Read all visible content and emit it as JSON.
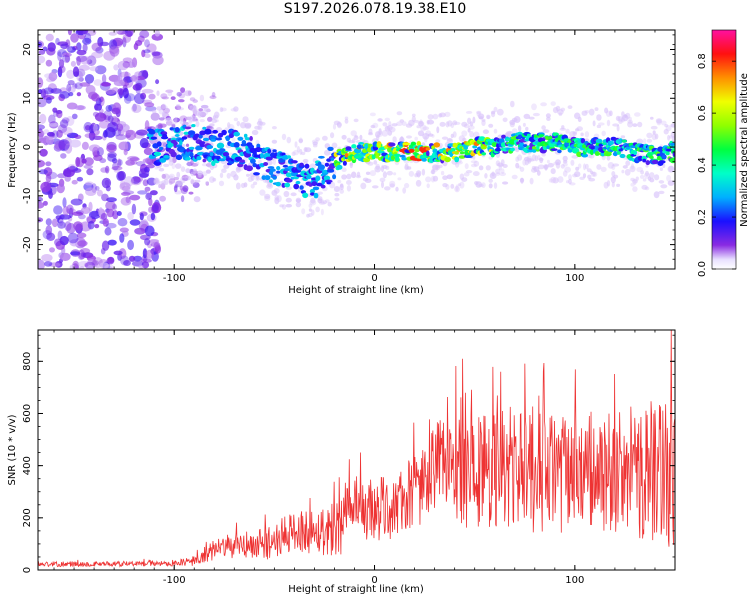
{
  "title": "S197.2026.078.19.38.E10",
  "chart_data": [
    {
      "type": "heatmap",
      "xlabel": "Height of straight line (km)",
      "ylabel": "Frequency (Hz)",
      "xlim": [
        -168,
        150
      ],
      "ylim": [
        -25,
        24
      ],
      "xticks": [
        -100,
        0,
        100
      ],
      "xtick_labels": [
        "-100",
        "0",
        "100"
      ],
      "yticks": [
        -20,
        -10,
        0,
        10,
        20
      ],
      "ytick_labels": [
        "-20",
        "-10",
        "0",
        "10",
        "20"
      ],
      "ridge": {
        "x": [
          -110,
          -100,
          -90,
          -80,
          -70,
          -60,
          -50,
          -40,
          -30,
          -20,
          -10,
          0,
          10,
          20,
          30,
          40,
          50,
          60,
          70,
          80,
          90,
          100,
          110,
          120,
          130,
          140,
          148
        ],
        "freq_hz": [
          0,
          1,
          1,
          0,
          0,
          -2,
          -4,
          -6,
          -7,
          -3,
          -1,
          -1,
          -1,
          -1,
          -1,
          -1,
          0,
          0,
          1,
          1,
          1,
          0,
          0,
          0,
          -1,
          -2,
          -1
        ]
      },
      "colorbar": {
        "label": "Normalized spectral amplitude",
        "range": [
          0,
          0.92
        ],
        "ticks": [
          0.0,
          0.2,
          0.4,
          0.6,
          0.8
        ],
        "tick_labels": [
          "0.0",
          "0.2",
          "0.4",
          "0.6",
          "0.8"
        ]
      }
    },
    {
      "type": "line",
      "xlabel": "Height of straight line (km)",
      "ylabel": "SNR (10 * v/v)",
      "xlim": [
        -168,
        150
      ],
      "ylim": [
        0,
        920
      ],
      "xticks": [
        -100,
        0,
        100
      ],
      "xtick_labels": [
        "-100",
        "0",
        "100"
      ],
      "yticks": [
        0,
        200,
        400,
        600,
        800
      ],
      "ytick_labels": [
        "0",
        "200",
        "400",
        "600",
        "800"
      ],
      "series": [
        {
          "name": "SNR",
          "color": "#ee3333",
          "envelope_x": [
            -168,
            -100,
            -90,
            -80,
            -70,
            -60,
            -50,
            -40,
            -30,
            -20,
            -10,
            0,
            10,
            20,
            30,
            40,
            50,
            60,
            70,
            80,
            90,
            100,
            110,
            120,
            130,
            140,
            150
          ],
          "envelope_mean": [
            22,
            25,
            35,
            75,
            90,
            95,
            110,
            150,
            150,
            160,
            220,
            230,
            240,
            300,
            390,
            400,
            380,
            390,
            390,
            380,
            370,
            360,
            370,
            360,
            380,
            380,
            380
          ],
          "envelope_spread": [
            10,
            10,
            20,
            40,
            50,
            60,
            70,
            80,
            90,
            110,
            140,
            130,
            120,
            150,
            170,
            220,
            240,
            240,
            250,
            250,
            230,
            230,
            230,
            240,
            260,
            280,
            300
          ],
          "peak_x": [
            44,
            63,
            148
          ],
          "peak_y": [
            810,
            760,
            920
          ]
        }
      ]
    }
  ]
}
